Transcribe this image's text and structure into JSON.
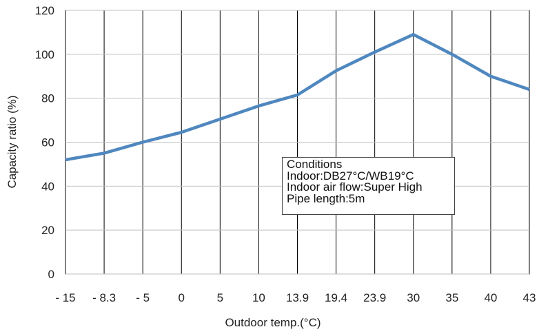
{
  "chart_data": {
    "type": "line",
    "title": "",
    "xlabel": "Outdoor temp.(°C)",
    "ylabel": "Capacity ratio (%)",
    "categories": [
      "- 15",
      "- 8.3",
      "- 5",
      "0",
      "5",
      "10",
      "13.9",
      "19.4",
      "23.9",
      "30",
      "35",
      "40",
      "43"
    ],
    "y_ticks": [
      "0",
      "20",
      "40",
      "60",
      "80",
      "100",
      "120"
    ],
    "ylim": [
      0,
      120
    ],
    "grid": "vertical lines at categories, horizontal at y ticks",
    "series": [
      {
        "values": [
          52,
          55,
          60,
          64.5,
          70.5,
          76.5,
          81.5,
          92.5,
          101,
          109,
          100,
          90,
          84
        ],
        "color": "#4f87bf"
      }
    ],
    "annotation": {
      "lines": [
        "Conditions",
        "Indoor:DB27°C/WB19°C",
        "Indoor air flow:Super High",
        "Pipe length:5m"
      ]
    }
  }
}
